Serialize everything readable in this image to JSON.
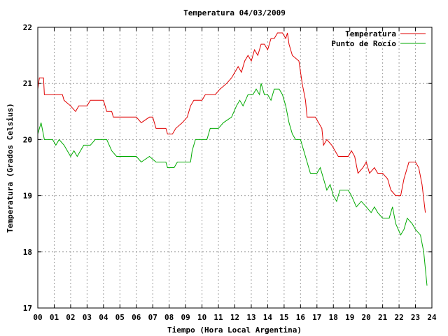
{
  "chart_data": {
    "type": "line",
    "title": "Temperatura 04/03/2009",
    "xlabel": "Tiempo (Hora Local Argentina)",
    "ylabel": "Temperatura (Grados Celsius)",
    "xlim": [
      0,
      24
    ],
    "ylim": [
      17,
      22
    ],
    "grid": true,
    "legend_position": "top-right",
    "x_ticks": [
      "00",
      "01",
      "02",
      "03",
      "04",
      "05",
      "06",
      "07",
      "08",
      "09",
      "10",
      "11",
      "12",
      "13",
      "14",
      "15",
      "16",
      "17",
      "18",
      "19",
      "20",
      "21",
      "22",
      "23",
      "24"
    ],
    "y_ticks": [
      "17",
      "18",
      "19",
      "20",
      "21",
      "22"
    ],
    "series": [
      {
        "name": "Temperatura",
        "color": "#e00000",
        "points": [
          [
            0.0,
            20.9
          ],
          [
            0.1,
            21.1
          ],
          [
            0.35,
            21.1
          ],
          [
            0.4,
            20.8
          ],
          [
            1.0,
            20.8
          ],
          [
            1.5,
            20.8
          ],
          [
            1.6,
            20.7
          ],
          [
            2.0,
            20.6
          ],
          [
            2.3,
            20.5
          ],
          [
            2.5,
            20.6
          ],
          [
            3.0,
            20.6
          ],
          [
            3.2,
            20.7
          ],
          [
            3.5,
            20.7
          ],
          [
            4.0,
            20.7
          ],
          [
            4.2,
            20.5
          ],
          [
            4.5,
            20.5
          ],
          [
            4.6,
            20.4
          ],
          [
            5.0,
            20.4
          ],
          [
            5.5,
            20.4
          ],
          [
            6.0,
            20.4
          ],
          [
            6.3,
            20.3
          ],
          [
            6.8,
            20.4
          ],
          [
            7.0,
            20.4
          ],
          [
            7.2,
            20.2
          ],
          [
            7.8,
            20.2
          ],
          [
            7.9,
            20.1
          ],
          [
            8.2,
            20.1
          ],
          [
            8.4,
            20.2
          ],
          [
            8.8,
            20.3
          ],
          [
            9.1,
            20.4
          ],
          [
            9.3,
            20.6
          ],
          [
            9.5,
            20.7
          ],
          [
            10.0,
            20.7
          ],
          [
            10.2,
            20.8
          ],
          [
            10.8,
            20.8
          ],
          [
            11.1,
            20.9
          ],
          [
            11.5,
            21.0
          ],
          [
            11.8,
            21.1
          ],
          [
            12.0,
            21.2
          ],
          [
            12.2,
            21.3
          ],
          [
            12.4,
            21.2
          ],
          [
            12.6,
            21.4
          ],
          [
            12.8,
            21.5
          ],
          [
            13.0,
            21.4
          ],
          [
            13.2,
            21.6
          ],
          [
            13.4,
            21.5
          ],
          [
            13.6,
            21.7
          ],
          [
            13.8,
            21.7
          ],
          [
            14.0,
            21.6
          ],
          [
            14.2,
            21.8
          ],
          [
            14.4,
            21.8
          ],
          [
            14.6,
            21.9
          ],
          [
            14.9,
            21.9
          ],
          [
            15.1,
            21.8
          ],
          [
            15.2,
            21.9
          ],
          [
            15.3,
            21.7
          ],
          [
            15.5,
            21.5
          ],
          [
            15.9,
            21.4
          ],
          [
            16.1,
            21.0
          ],
          [
            16.3,
            20.7
          ],
          [
            16.4,
            20.4
          ],
          [
            16.9,
            20.4
          ],
          [
            17.1,
            20.3
          ],
          [
            17.3,
            20.2
          ],
          [
            17.4,
            19.9
          ],
          [
            17.6,
            20.0
          ],
          [
            17.9,
            19.9
          ],
          [
            18.1,
            19.8
          ],
          [
            18.3,
            19.7
          ],
          [
            18.9,
            19.7
          ],
          [
            19.1,
            19.8
          ],
          [
            19.3,
            19.7
          ],
          [
            19.5,
            19.4
          ],
          [
            19.8,
            19.5
          ],
          [
            20.0,
            19.6
          ],
          [
            20.2,
            19.4
          ],
          [
            20.5,
            19.5
          ],
          [
            20.7,
            19.4
          ],
          [
            21.0,
            19.4
          ],
          [
            21.3,
            19.3
          ],
          [
            21.5,
            19.1
          ],
          [
            21.8,
            19.0
          ],
          [
            22.1,
            19.0
          ],
          [
            22.3,
            19.3
          ],
          [
            22.6,
            19.6
          ],
          [
            23.0,
            19.6
          ],
          [
            23.2,
            19.5
          ],
          [
            23.4,
            19.2
          ],
          [
            23.6,
            18.7
          ]
        ]
      },
      {
        "name": "Punto de Rocío",
        "color": "#00aa00",
        "points": [
          [
            0.0,
            20.1
          ],
          [
            0.2,
            20.3
          ],
          [
            0.4,
            20.0
          ],
          [
            0.9,
            20.0
          ],
          [
            1.1,
            19.9
          ],
          [
            1.3,
            20.0
          ],
          [
            1.6,
            19.9
          ],
          [
            2.0,
            19.7
          ],
          [
            2.2,
            19.8
          ],
          [
            2.4,
            19.7
          ],
          [
            2.6,
            19.8
          ],
          [
            2.8,
            19.9
          ],
          [
            3.2,
            19.9
          ],
          [
            3.5,
            20.0
          ],
          [
            4.2,
            20.0
          ],
          [
            4.5,
            19.8
          ],
          [
            4.8,
            19.7
          ],
          [
            5.5,
            19.7
          ],
          [
            6.0,
            19.7
          ],
          [
            6.3,
            19.6
          ],
          [
            6.8,
            19.7
          ],
          [
            7.2,
            19.6
          ],
          [
            7.8,
            19.6
          ],
          [
            7.9,
            19.5
          ],
          [
            8.3,
            19.5
          ],
          [
            8.5,
            19.6
          ],
          [
            9.3,
            19.6
          ],
          [
            9.4,
            19.8
          ],
          [
            9.6,
            20.0
          ],
          [
            10.3,
            20.0
          ],
          [
            10.5,
            20.2
          ],
          [
            11.0,
            20.2
          ],
          [
            11.3,
            20.3
          ],
          [
            11.8,
            20.4
          ],
          [
            12.1,
            20.6
          ],
          [
            12.3,
            20.7
          ],
          [
            12.5,
            20.6
          ],
          [
            12.8,
            20.8
          ],
          [
            13.1,
            20.8
          ],
          [
            13.3,
            20.9
          ],
          [
            13.5,
            20.8
          ],
          [
            13.6,
            21.0
          ],
          [
            13.8,
            20.8
          ],
          [
            14.0,
            20.8
          ],
          [
            14.2,
            20.7
          ],
          [
            14.4,
            20.9
          ],
          [
            14.7,
            20.9
          ],
          [
            14.9,
            20.8
          ],
          [
            15.1,
            20.6
          ],
          [
            15.3,
            20.3
          ],
          [
            15.5,
            20.1
          ],
          [
            15.7,
            20.0
          ],
          [
            16.0,
            20.0
          ],
          [
            16.2,
            19.8
          ],
          [
            16.4,
            19.6
          ],
          [
            16.6,
            19.4
          ],
          [
            17.0,
            19.4
          ],
          [
            17.2,
            19.5
          ],
          [
            17.4,
            19.3
          ],
          [
            17.6,
            19.1
          ],
          [
            17.8,
            19.2
          ],
          [
            18.0,
            19.0
          ],
          [
            18.2,
            18.9
          ],
          [
            18.4,
            19.1
          ],
          [
            18.9,
            19.1
          ],
          [
            19.1,
            19.0
          ],
          [
            19.4,
            18.8
          ],
          [
            19.7,
            18.9
          ],
          [
            20.0,
            18.8
          ],
          [
            20.3,
            18.7
          ],
          [
            20.5,
            18.8
          ],
          [
            20.7,
            18.7
          ],
          [
            21.0,
            18.6
          ],
          [
            21.4,
            18.6
          ],
          [
            21.6,
            18.8
          ],
          [
            21.8,
            18.5
          ],
          [
            22.1,
            18.3
          ],
          [
            22.3,
            18.4
          ],
          [
            22.5,
            18.6
          ],
          [
            22.8,
            18.5
          ],
          [
            23.0,
            18.4
          ],
          [
            23.3,
            18.3
          ],
          [
            23.5,
            18.0
          ],
          [
            23.7,
            17.4
          ]
        ]
      }
    ]
  }
}
